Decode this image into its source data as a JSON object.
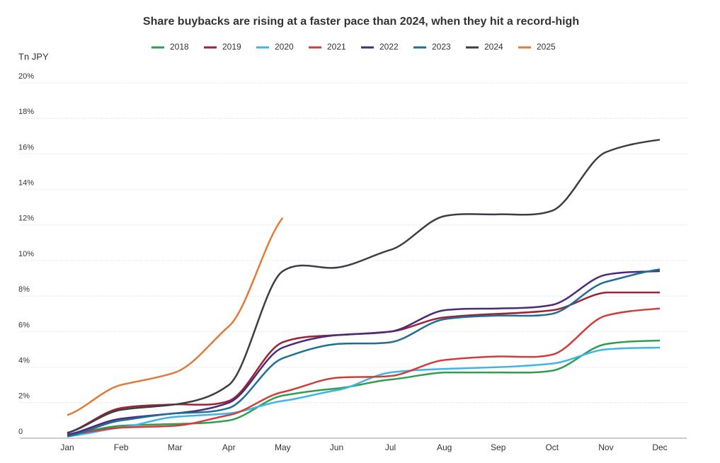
{
  "chart_data": {
    "type": "line",
    "title": "Share buybacks are rising at a faster pace than 2024, when they hit a record-high",
    "y_label": "Tn JPY",
    "categories": [
      "Jan",
      "Feb",
      "Mar",
      "Apr",
      "May",
      "Jun",
      "Jul",
      "Aug",
      "Sep",
      "Oct",
      "Nov",
      "Dec"
    ],
    "series": [
      {
        "name": "2018",
        "color": "#2e9e4f",
        "values": [
          0.2,
          0.7,
          0.8,
          1.0,
          2.4,
          2.8,
          3.3,
          3.7,
          3.7,
          3.8,
          5.3,
          5.5
        ]
      },
      {
        "name": "2019",
        "color": "#9b2335",
        "values": [
          0.3,
          1.7,
          1.9,
          2.1,
          5.4,
          5.8,
          6.0,
          6.8,
          7.0,
          7.2,
          8.2,
          8.2
        ]
      },
      {
        "name": "2020",
        "color": "#3fb5e6",
        "values": [
          0.1,
          0.6,
          1.2,
          1.4,
          2.1,
          2.7,
          3.7,
          3.9,
          4.0,
          4.2,
          5.0,
          5.1
        ]
      },
      {
        "name": "2021",
        "color": "#d13c3c",
        "values": [
          0.2,
          0.6,
          0.7,
          1.3,
          2.6,
          3.4,
          3.5,
          4.4,
          4.6,
          4.7,
          6.9,
          7.3
        ]
      },
      {
        "name": "2022",
        "color": "#4b2a7a",
        "values": [
          0.2,
          1.1,
          1.4,
          2.0,
          5.1,
          5.8,
          6.0,
          7.2,
          7.3,
          7.5,
          9.2,
          9.4
        ]
      },
      {
        "name": "2023",
        "color": "#1e6e96",
        "values": [
          0.1,
          1.0,
          1.4,
          1.7,
          4.5,
          5.3,
          5.4,
          6.7,
          6.9,
          7.0,
          8.8,
          9.5
        ]
      },
      {
        "name": "2024",
        "color": "#3d3d45",
        "values": [
          0.3,
          1.6,
          1.9,
          3.0,
          9.4,
          9.6,
          10.6,
          12.5,
          12.6,
          12.8,
          16.1,
          16.8
        ]
      },
      {
        "name": "2025",
        "color": "#e07b39",
        "values": [
          1.3,
          3.0,
          3.7,
          6.3,
          12.4,
          null,
          null,
          null,
          null,
          null,
          null,
          null
        ]
      }
    ],
    "ylim": [
      0,
      20
    ],
    "yticks": [
      0,
      {
        "value": 2,
        "label": "2%"
      },
      {
        "value": 4,
        "label": "4%"
      },
      {
        "value": 6,
        "label": "6%"
      },
      {
        "value": 8,
        "label": "8%"
      },
      {
        "value": 10,
        "label": "10%"
      },
      {
        "value": 12,
        "label": "12%"
      },
      {
        "value": 14,
        "label": "14%"
      },
      {
        "value": 16,
        "label": "16%"
      },
      {
        "value": 18,
        "label": "18%"
      },
      {
        "value": 20,
        "label": "20%"
      }
    ],
    "grid": true
  }
}
